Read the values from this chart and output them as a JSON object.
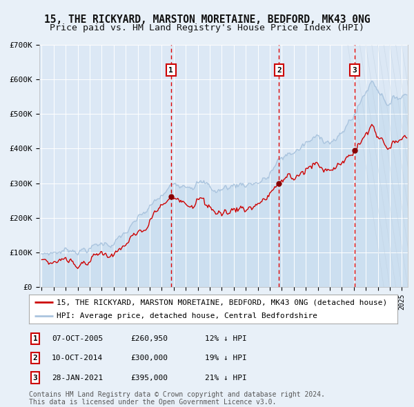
{
  "title": "15, THE RICKYARD, MARSTON MORETAINE, BEDFORD, MK43 0NG",
  "subtitle": "Price paid vs. HM Land Registry's House Price Index (HPI)",
  "x_start_year": 1995,
  "x_end_year": 2025,
  "y_min": 0,
  "y_max": 700000,
  "y_ticks": [
    0,
    100000,
    200000,
    300000,
    400000,
    500000,
    600000,
    700000
  ],
  "y_tick_labels": [
    "£0",
    "£100K",
    "£200K",
    "£300K",
    "£400K",
    "£500K",
    "£600K",
    "£700K"
  ],
  "hpi_color": "#aac4de",
  "price_color": "#cc0000",
  "bg_color": "#e8f0f8",
  "plot_bg": "#dce8f5",
  "grid_color": "#ffffff",
  "sale_dates": [
    2005.77,
    2014.77,
    2021.07
  ],
  "sale_prices": [
    260950,
    300000,
    395000
  ],
  "sale_labels": [
    "1",
    "2",
    "3"
  ],
  "vline_color": "#dd0000",
  "marker_color": "#880000",
  "legend_label_price": "15, THE RICKYARD, MARSTON MORETAINE, BEDFORD, MK43 0NG (detached house)",
  "legend_label_hpi": "HPI: Average price, detached house, Central Bedfordshire",
  "table_rows": [
    [
      "1",
      "07-OCT-2005",
      "£260,950",
      "12% ↓ HPI"
    ],
    [
      "2",
      "10-OCT-2014",
      "£300,000",
      "19% ↓ HPI"
    ],
    [
      "3",
      "28-JAN-2021",
      "£395,000",
      "21% ↓ HPI"
    ]
  ],
  "footer": "Contains HM Land Registry data © Crown copyright and database right 2024.\nThis data is licensed under the Open Government Licence v3.0.",
  "title_fontsize": 10.5,
  "subtitle_fontsize": 9.5,
  "tick_fontsize": 8,
  "legend_fontsize": 8,
  "table_fontsize": 8,
  "footer_fontsize": 7
}
